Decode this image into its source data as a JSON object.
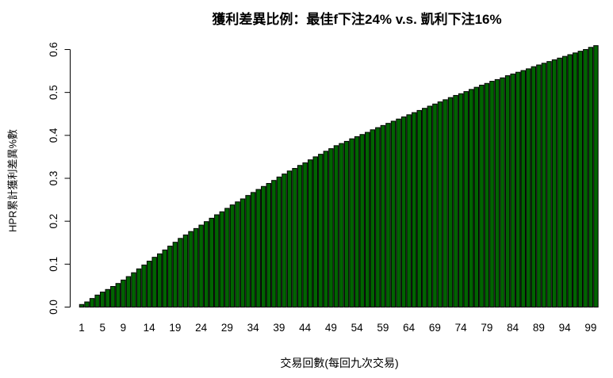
{
  "chart_data": {
    "type": "bar",
    "title": "獲利差異比例：最佳f下注24% v.s. 凱利下注16%",
    "xlabel": "交易回數(每回九次交易)",
    "ylabel": "HPR累計獲利差異%數",
    "x": [
      1,
      2,
      3,
      4,
      5,
      6,
      7,
      8,
      9,
      10,
      11,
      12,
      13,
      14,
      15,
      16,
      17,
      18,
      19,
      20,
      21,
      22,
      23,
      24,
      25,
      26,
      27,
      28,
      29,
      30,
      31,
      32,
      33,
      34,
      35,
      36,
      37,
      38,
      39,
      40,
      41,
      42,
      43,
      44,
      45,
      46,
      47,
      48,
      49,
      50,
      51,
      52,
      53,
      54,
      55,
      56,
      57,
      58,
      59,
      60,
      61,
      62,
      63,
      64,
      65,
      66,
      67,
      68,
      69,
      70,
      71,
      72,
      73,
      74,
      75,
      76,
      77,
      78,
      79,
      80,
      81,
      82,
      83,
      84,
      85,
      86,
      87,
      88,
      89,
      90,
      91,
      92,
      93,
      94,
      95,
      96,
      97,
      98,
      99,
      100
    ],
    "values": [
      0.006,
      0.012,
      0.02,
      0.028,
      0.035,
      0.041,
      0.048,
      0.055,
      0.063,
      0.071,
      0.08,
      0.089,
      0.098,
      0.107,
      0.116,
      0.124,
      0.133,
      0.142,
      0.151,
      0.16,
      0.168,
      0.176,
      0.183,
      0.191,
      0.199,
      0.207,
      0.215,
      0.222,
      0.23,
      0.238,
      0.245,
      0.252,
      0.26,
      0.267,
      0.274,
      0.281,
      0.288,
      0.295,
      0.303,
      0.31,
      0.317,
      0.323,
      0.33,
      0.336,
      0.343,
      0.35,
      0.356,
      0.363,
      0.369,
      0.376,
      0.381,
      0.386,
      0.392,
      0.397,
      0.402,
      0.407,
      0.413,
      0.418,
      0.423,
      0.428,
      0.433,
      0.438,
      0.443,
      0.448,
      0.453,
      0.458,
      0.463,
      0.468,
      0.473,
      0.478,
      0.483,
      0.488,
      0.493,
      0.497,
      0.502,
      0.507,
      0.512,
      0.517,
      0.521,
      0.526,
      0.53,
      0.534,
      0.539,
      0.543,
      0.547,
      0.551,
      0.555,
      0.56,
      0.564,
      0.568,
      0.572,
      0.576,
      0.58,
      0.584,
      0.588,
      0.592,
      0.596,
      0.6,
      0.605,
      0.609
    ],
    "x_tick_labels": [
      "1",
      "5",
      "9",
      "14",
      "19",
      "24",
      "29",
      "34",
      "39",
      "44",
      "49",
      "54",
      "59",
      "64",
      "69",
      "74",
      "79",
      "84",
      "89",
      "94",
      "99"
    ],
    "y_tick_labels": [
      "0.0",
      "0.1",
      "0.2",
      "0.3",
      "0.4",
      "0.5",
      "0.6"
    ],
    "ylim": [
      0.0,
      0.63
    ],
    "grid": false,
    "legend_position": "none",
    "bar_color": "#006400",
    "bar_border_color": "#000000",
    "axis_color": "#000000",
    "text_color": "#000000"
  }
}
